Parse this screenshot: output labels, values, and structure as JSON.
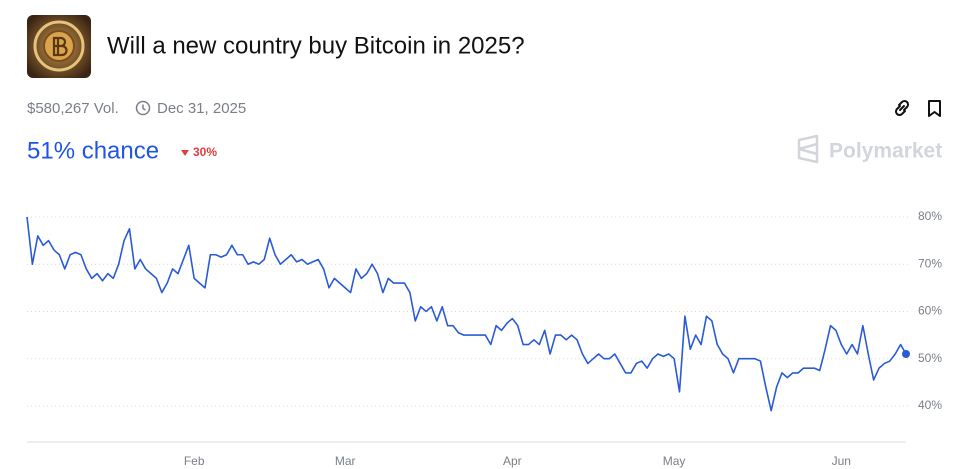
{
  "header": {
    "title": "Will a new country buy Bitcoin in 2025?",
    "volume": "$580,267 Vol.",
    "end_date": "Dec 31, 2025",
    "chance": "51% chance",
    "change": "30%",
    "brand": "Polymarket"
  },
  "chart_data": {
    "type": "line",
    "color": "#2a5bd7",
    "grid": true,
    "categories": [
      null,
      null,
      null,
      null,
      null,
      null,
      null,
      null,
      null,
      null,
      null,
      null,
      null,
      null,
      null,
      null,
      null,
      null,
      null,
      null,
      null,
      null,
      null,
      null,
      null,
      null,
      null,
      null,
      null,
      null,
      null,
      "Feb",
      null,
      null,
      null,
      null,
      null,
      null,
      null,
      null,
      null,
      null,
      null,
      null,
      null,
      null,
      null,
      null,
      null,
      null,
      null,
      null,
      null,
      null,
      null,
      null,
      null,
      null,
      null,
      "Mar",
      null,
      null,
      null,
      null,
      null,
      null,
      null,
      null,
      null,
      null,
      null,
      null,
      null,
      null,
      null,
      null,
      null,
      null,
      null,
      null,
      null,
      null,
      null,
      null,
      null,
      null,
      null,
      null,
      null,
      null,
      "Apr",
      null,
      null,
      null,
      null,
      null,
      null,
      null,
      null,
      null,
      null,
      null,
      null,
      null,
      null,
      null,
      null,
      null,
      null,
      null,
      null,
      null,
      null,
      null,
      null,
      null,
      null,
      null,
      null,
      null,
      "May",
      null,
      null,
      null,
      null,
      null,
      null,
      null,
      null,
      null,
      null,
      null,
      null,
      null,
      null,
      null,
      null,
      null,
      null,
      null,
      null,
      null,
      null,
      null,
      null,
      null,
      null,
      null,
      null,
      null,
      null,
      "Jun",
      null,
      null,
      null,
      null,
      null,
      null,
      null,
      null,
      null,
      null,
      null,
      null
    ],
    "values": [
      80,
      70,
      76,
      74,
      75,
      73,
      72,
      69,
      72,
      72.5,
      72,
      69,
      67,
      68,
      66.5,
      68,
      67,
      70,
      75,
      77.5,
      69,
      71,
      69,
      68,
      67,
      64,
      66,
      69,
      68,
      71,
      74,
      67,
      66,
      65,
      72,
      72,
      71.5,
      72,
      74,
      72,
      72,
      70,
      70.5,
      70,
      71,
      75.5,
      72,
      70,
      71,
      72,
      70.5,
      71,
      70,
      70.5,
      71,
      69,
      65,
      67,
      66,
      65,
      64,
      69,
      67,
      68,
      70,
      68,
      64,
      67,
      66,
      66,
      66,
      64,
      58,
      61,
      60,
      61,
      58,
      61,
      57,
      57,
      55.5,
      55,
      55,
      55,
      55,
      55,
      53,
      57,
      56,
      57.5,
      58.5,
      57,
      53,
      53,
      54,
      53,
      56,
      51,
      55,
      55,
      54,
      55,
      54,
      51,
      49,
      50,
      51,
      50,
      50,
      51,
      49,
      47,
      47,
      49,
      49.5,
      48,
      50,
      51,
      50.5,
      51,
      50,
      43,
      59,
      52,
      55,
      53,
      59,
      58,
      53,
      51,
      50,
      47,
      50,
      50,
      50,
      50,
      49.5,
      44,
      39,
      44,
      47,
      46,
      47,
      47,
      48,
      48,
      48,
      47.5,
      52,
      57,
      56,
      53,
      51,
      53,
      51,
      57,
      51,
      45.5,
      48,
      49,
      49.5,
      51,
      53,
      51
    ],
    "ylim": [
      32.5,
      80.5
    ],
    "yticks": [
      {
        "value": 40,
        "label": "40%"
      },
      {
        "value": 50,
        "label": "50%"
      },
      {
        "value": 60,
        "label": "60%"
      },
      {
        "value": 70,
        "label": "70%"
      },
      {
        "value": 80,
        "label": "80%"
      }
    ]
  }
}
